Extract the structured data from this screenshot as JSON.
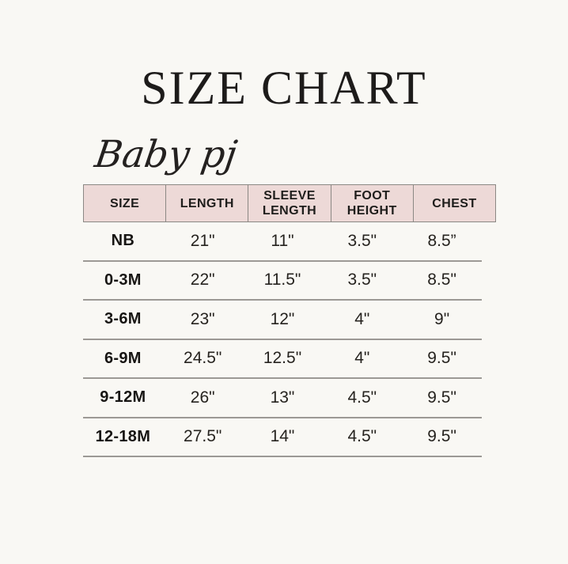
{
  "page": {
    "background_color": "#f9f8f4",
    "header_pink": "#edd9d7",
    "header_border_color": "#8b8884",
    "grid_line_color": "#9c9995"
  },
  "chart_data": {
    "type": "table",
    "title": "SIZE CHART",
    "subtitle": "Baby pj",
    "columns": [
      "SIZE",
      "LENGTH",
      "SLEEVE LENGTH",
      "FOOT HEIGHT",
      "CHEST"
    ],
    "rows": [
      [
        "NB",
        "21\"",
        "11\"",
        "3.5\"",
        "8.5”"
      ],
      [
        "0-3M",
        "22\"",
        "11.5\"",
        "3.5\"",
        "8.5\""
      ],
      [
        "3-6M",
        "23\"",
        "12\"",
        "4\"",
        "9\""
      ],
      [
        "6-9M",
        "24.5\"",
        "12.5\"",
        "4\"",
        "9.5\""
      ],
      [
        "9-12M",
        "26\"",
        "13\"",
        "4.5\"",
        "9.5\""
      ],
      [
        "12-18M",
        "27.5\"",
        "14\"",
        "4.5\"",
        "9.5\""
      ]
    ]
  }
}
